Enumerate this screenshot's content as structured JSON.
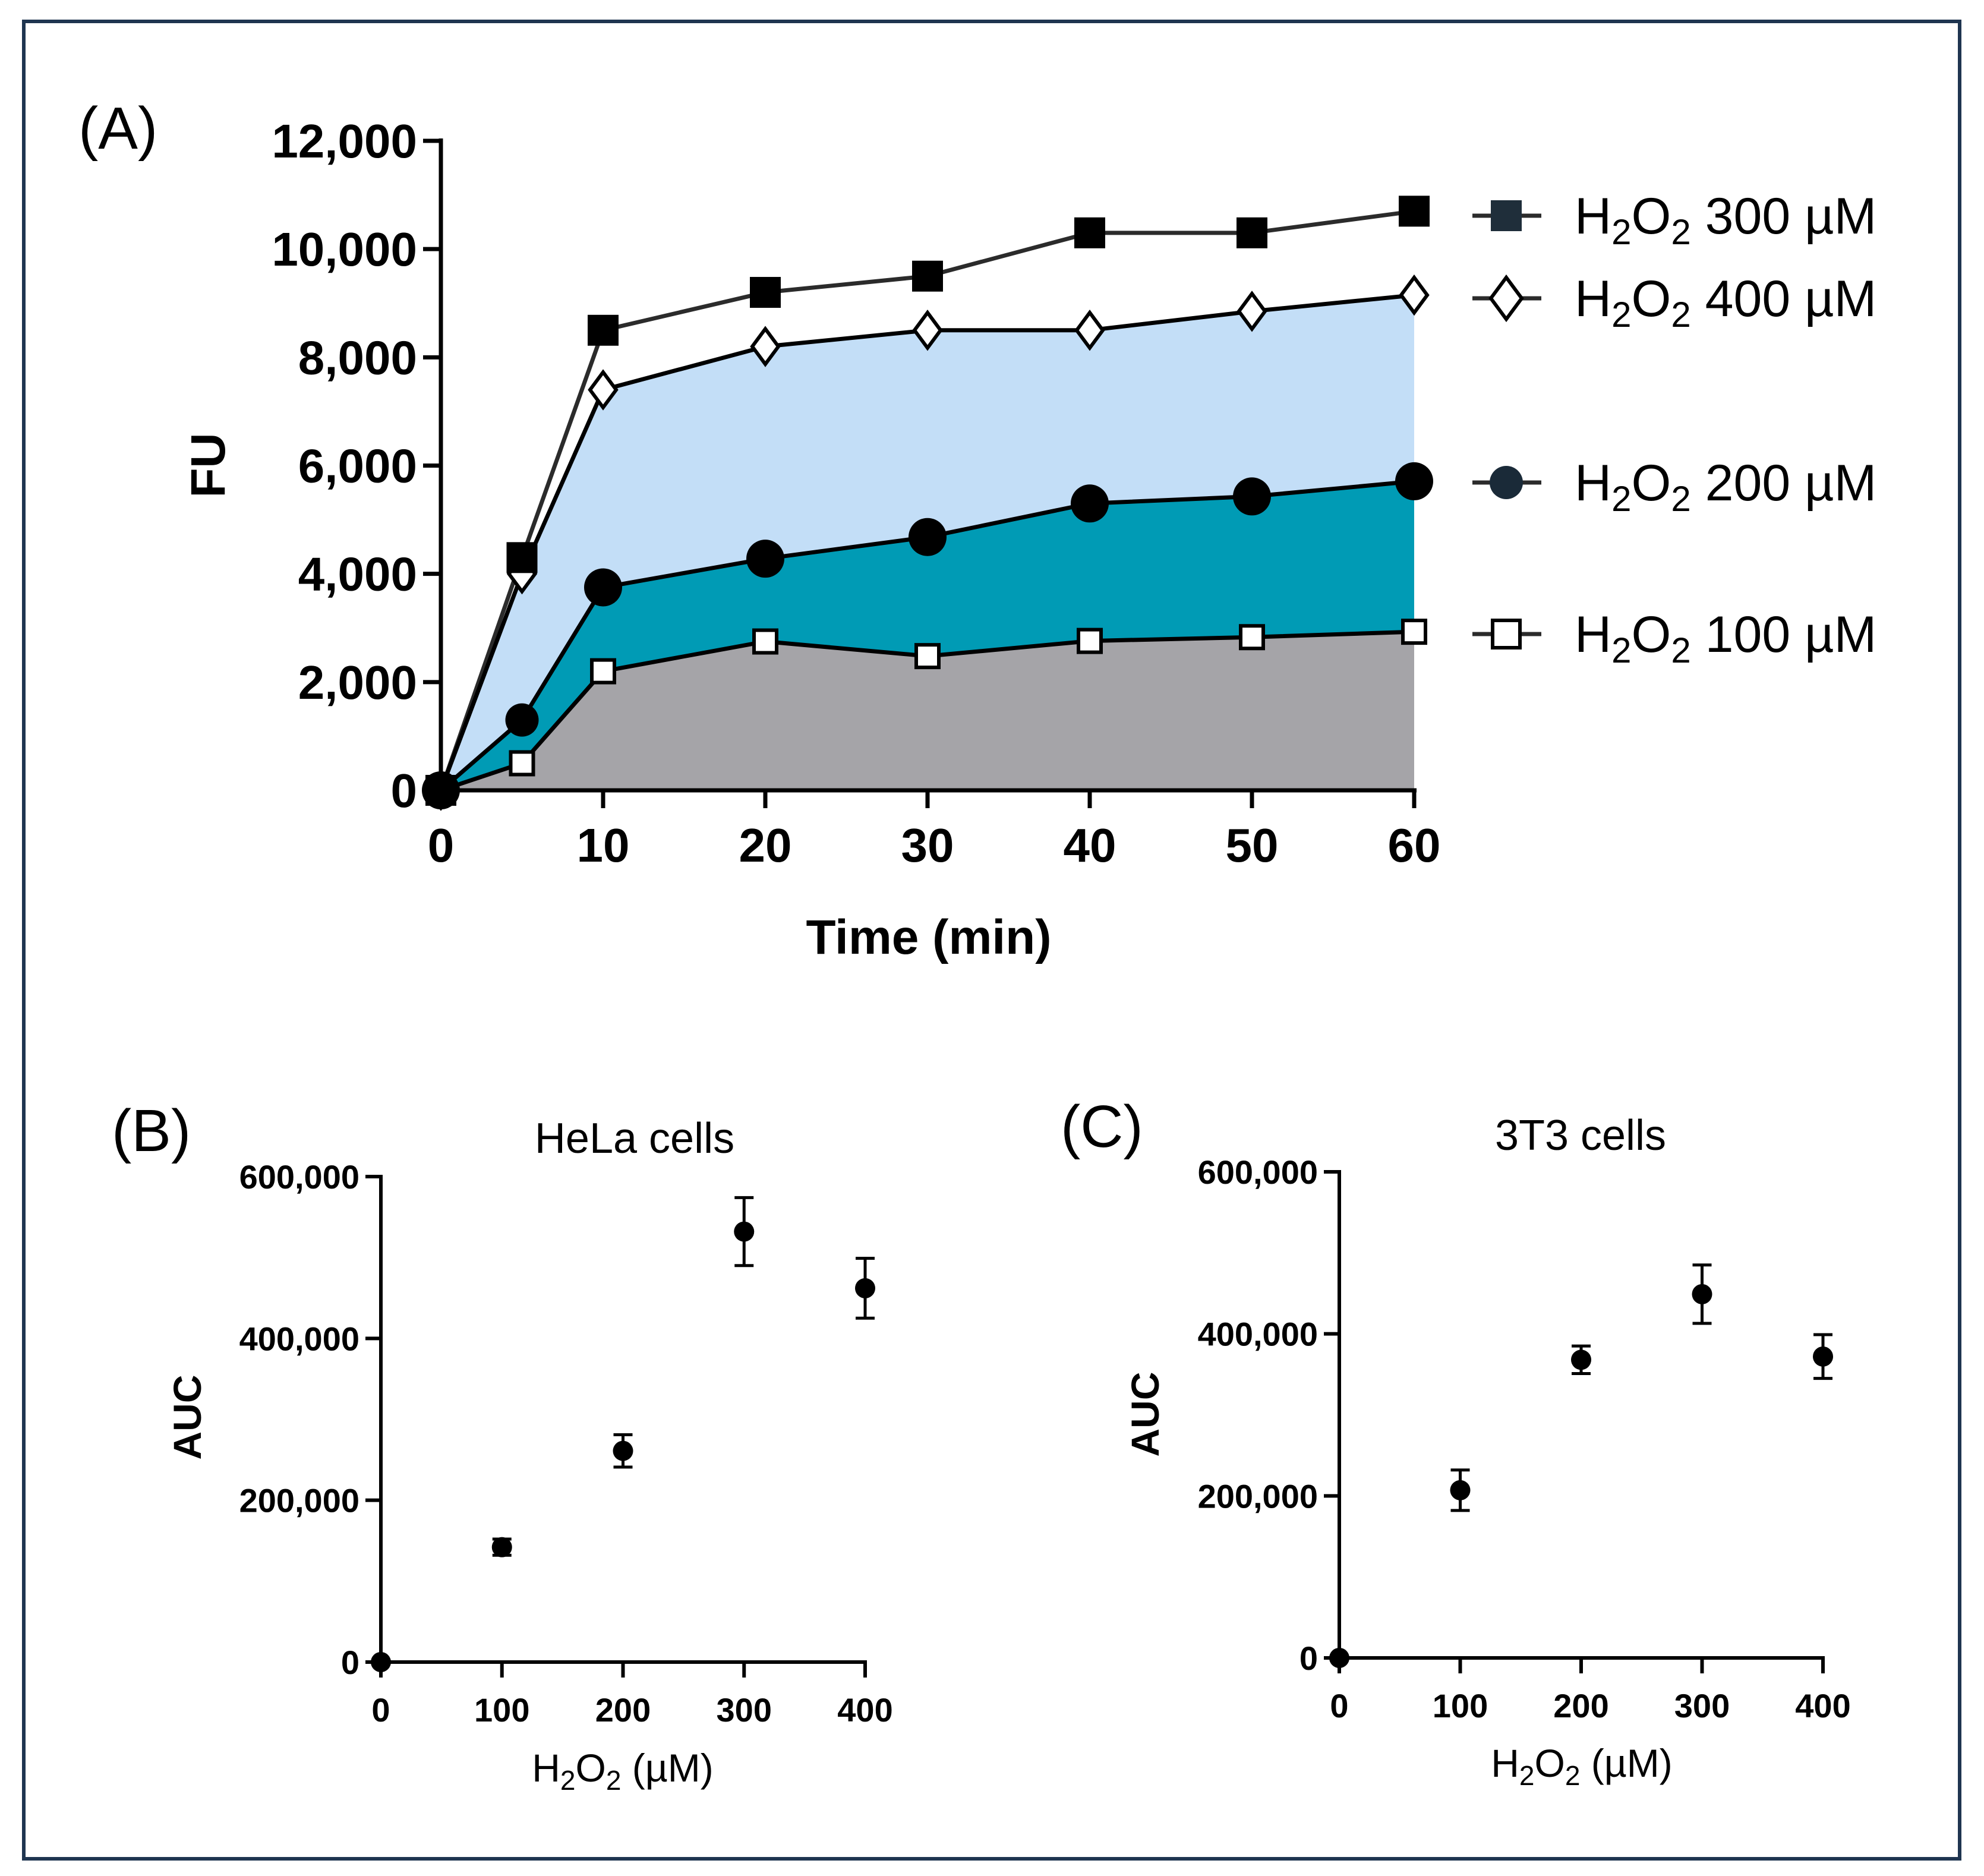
{
  "figure": {
    "border_color": "#1f3550"
  },
  "colors": {
    "line": "#000000",
    "line_300": "#2b2b2b",
    "fill_400": "#c3def7",
    "fill_200": "#009bb5",
    "fill_100": "#a5a4a8",
    "marker_edge": "#000000",
    "legend_marker_300": "#1f2e3a",
    "legend_marker_200": "#1a2a38"
  },
  "chart_data": [
    {
      "panel": "(A)",
      "type": "line",
      "title": "",
      "xlabel": "Time (min)",
      "ylabel": "FU",
      "x": [
        0,
        5,
        10,
        20,
        30,
        40,
        50,
        60
      ],
      "x_tick_values": [
        0,
        10,
        20,
        30,
        40,
        50,
        60
      ],
      "x_tick_labels": [
        "0",
        "10",
        "20",
        "30",
        "40",
        "50",
        "60"
      ],
      "ylim": [
        0,
        12000
      ],
      "y_tick_values": [
        0,
        2000,
        4000,
        6000,
        8000,
        10000,
        12000
      ],
      "y_tick_labels": [
        "0",
        "2,000",
        "4,000",
        "6,000",
        "8,000",
        "10,000",
        "12,000"
      ],
      "series": [
        {
          "key": "h300",
          "name_prefix": "H",
          "name_sub1": "2",
          "name_mid": "O",
          "name_sub2": "2",
          "name_suffix": " 300 µM",
          "marker": "filled-square",
          "values": [
            0,
            4300,
            8500,
            9200,
            9500,
            10300,
            10300,
            10700
          ]
        },
        {
          "key": "h400",
          "name_prefix": "H",
          "name_sub1": "2",
          "name_mid": "O",
          "name_sub2": "2",
          "name_suffix": " 400 µM",
          "marker": "open-diamond",
          "values": [
            0,
            4000,
            7400,
            8200,
            8500,
            8500,
            8850,
            9150
          ]
        },
        {
          "key": "h200",
          "name_prefix": "H",
          "name_sub1": "2",
          "name_mid": "O",
          "name_sub2": "2",
          "name_suffix": " 200 µM",
          "marker": "filled-circle",
          "values": [
            0,
            1300,
            3750,
            4280,
            4680,
            5300,
            5430,
            5710
          ]
        },
        {
          "key": "h100",
          "name_prefix": "H",
          "name_sub1": "2",
          "name_mid": "O",
          "name_sub2": "2",
          "name_suffix": " 100 µM",
          "marker": "open-square",
          "values": [
            0,
            500,
            2200,
            2750,
            2480,
            2760,
            2830,
            2930
          ]
        }
      ],
      "legend_placement": "right"
    },
    {
      "panel": "(B)",
      "type": "scatter",
      "title": "HeLa cells",
      "xlabel_prefix": "H",
      "xlabel_sub1": "2",
      "xlabel_mid": "O",
      "xlabel_sub2": "2",
      "xlabel_suffix": " (µM)",
      "ylabel": "AUC",
      "x": [
        0,
        100,
        200,
        300,
        400
      ],
      "y": [
        0,
        142000,
        261000,
        532000,
        462000
      ],
      "err": [
        0,
        10000,
        20000,
        42000,
        37000
      ],
      "xlim": [
        0,
        400
      ],
      "x_tick_values": [
        0,
        100,
        200,
        300,
        400
      ],
      "x_tick_labels": [
        "0",
        "100",
        "200",
        "300",
        "400"
      ],
      "ylim": [
        0,
        600000
      ],
      "y_tick_values": [
        0,
        200000,
        400000,
        600000
      ],
      "y_tick_labels": [
        "0",
        "200,000",
        "400,000",
        "600,000"
      ]
    },
    {
      "panel": "(C)",
      "type": "scatter",
      "title": "3T3 cells",
      "xlabel_prefix": "H",
      "xlabel_sub1": "2",
      "xlabel_mid": "O",
      "xlabel_sub2": "2",
      "xlabel_suffix": " (µM)",
      "ylabel": "AUC",
      "x": [
        0,
        100,
        200,
        300,
        400
      ],
      "y": [
        0,
        207000,
        368000,
        449000,
        372000
      ],
      "err": [
        0,
        25000,
        17000,
        36000,
        27000
      ],
      "xlim": [
        0,
        400
      ],
      "x_tick_values": [
        0,
        100,
        200,
        300,
        400
      ],
      "x_tick_labels": [
        "0",
        "100",
        "200",
        "300",
        "400"
      ],
      "ylim": [
        0,
        600000
      ],
      "y_tick_values": [
        0,
        200000,
        400000,
        600000
      ],
      "y_tick_labels": [
        "0",
        "200,000",
        "400,000",
        "600,000"
      ]
    }
  ]
}
